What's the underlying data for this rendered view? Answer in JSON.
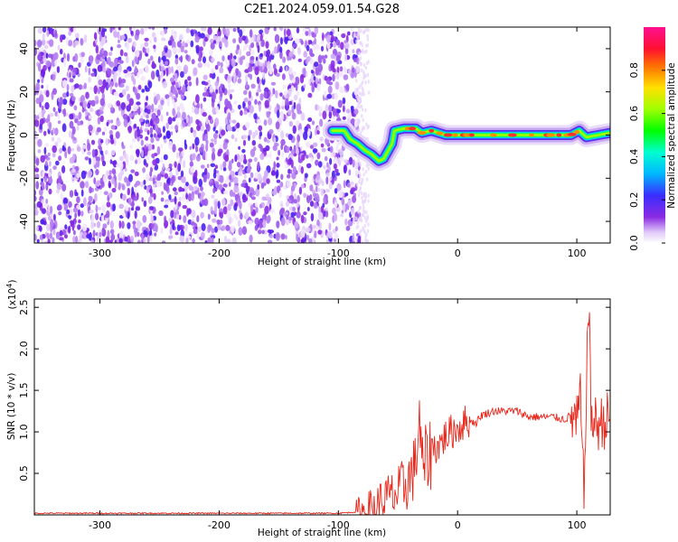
{
  "title": "C2E1.2024.059.01.54.G28",
  "chart_data": [
    {
      "type": "heatmap",
      "xlabel": "Height of straight line (km)",
      "ylabel": "Frequency (Hz)",
      "xlim": [
        -355,
        128
      ],
      "ylim": [
        -50,
        50
      ],
      "x_ticks": [
        -300,
        -200,
        -100,
        0,
        100
      ],
      "y_ticks": [
        -40,
        -20,
        0,
        20,
        40
      ],
      "noise_region_x": [
        -355,
        -82
      ],
      "signal_track": [
        {
          "x": -105,
          "y": 2
        },
        {
          "x": -95,
          "y": 2
        },
        {
          "x": -90,
          "y": -2
        },
        {
          "x": -84,
          "y": -4
        },
        {
          "x": -78,
          "y": -7
        },
        {
          "x": -72,
          "y": -9
        },
        {
          "x": -66,
          "y": -12
        },
        {
          "x": -62,
          "y": -11
        },
        {
          "x": -58,
          "y": -7
        },
        {
          "x": -55,
          "y": -4
        },
        {
          "x": -53,
          "y": 2
        },
        {
          "x": -45,
          "y": 3
        },
        {
          "x": -35,
          "y": 3
        },
        {
          "x": -30,
          "y": 1
        },
        {
          "x": -22,
          "y": 2
        },
        {
          "x": -10,
          "y": 0
        },
        {
          "x": 0,
          "y": 0
        },
        {
          "x": 20,
          "y": 0
        },
        {
          "x": 40,
          "y": 0
        },
        {
          "x": 60,
          "y": 0
        },
        {
          "x": 80,
          "y": 0
        },
        {
          "x": 95,
          "y": 0
        },
        {
          "x": 102,
          "y": 2
        },
        {
          "x": 108,
          "y": -1
        },
        {
          "x": 118,
          "y": 0
        },
        {
          "x": 128,
          "y": 1
        }
      ],
      "colorbar": {
        "label": "Normalized spectral amplitude",
        "range": [
          0,
          1
        ],
        "ticks": [
          "0.0",
          "0.2",
          "0.4",
          "0.6",
          "0.8"
        ]
      }
    },
    {
      "type": "line",
      "xlabel": "Height of straight line (km)",
      "ylabel": "SNR (10 * v/v)",
      "scale_label": "(x10^4)",
      "scale_base": "(x10",
      "scale_exp": "4",
      "scale_close": ")",
      "xlim": [
        -355,
        128
      ],
      "ylim": [
        0,
        2.6
      ],
      "x_ticks": [
        -300,
        -200,
        -100,
        0,
        100
      ],
      "y_ticks": [
        "0.5",
        "1.0",
        "1.5",
        "2.0",
        "2.5"
      ],
      "line_color": "#e8261a",
      "series": [
        {
          "x": [
            -355,
            -250,
            -150,
            -100,
            -80,
            -70,
            -60,
            -50,
            -45,
            -40,
            -35,
            -32,
            -30,
            -25,
            -20,
            -15,
            -10,
            -5,
            0,
            5,
            10,
            15,
            20,
            30,
            40,
            50,
            60,
            70,
            80,
            90,
            95,
            100,
            103,
            106,
            108,
            110,
            112,
            115,
            120,
            125,
            128
          ],
          "y": [
            0.02,
            0.02,
            0.02,
            0.02,
            0.04,
            0.1,
            0.2,
            0.25,
            0.35,
            0.45,
            0.6,
            1.2,
            0.55,
            0.7,
            0.8,
            0.85,
            0.95,
            1.0,
            1.05,
            1.1,
            1.15,
            1.1,
            1.2,
            1.25,
            1.25,
            1.25,
            1.18,
            1.18,
            1.18,
            1.15,
            1.2,
            1.1,
            1.4,
            0.2,
            1.6,
            2.55,
            1.2,
            1.1,
            1.1,
            1.15,
            1.15
          ]
        }
      ]
    }
  ]
}
